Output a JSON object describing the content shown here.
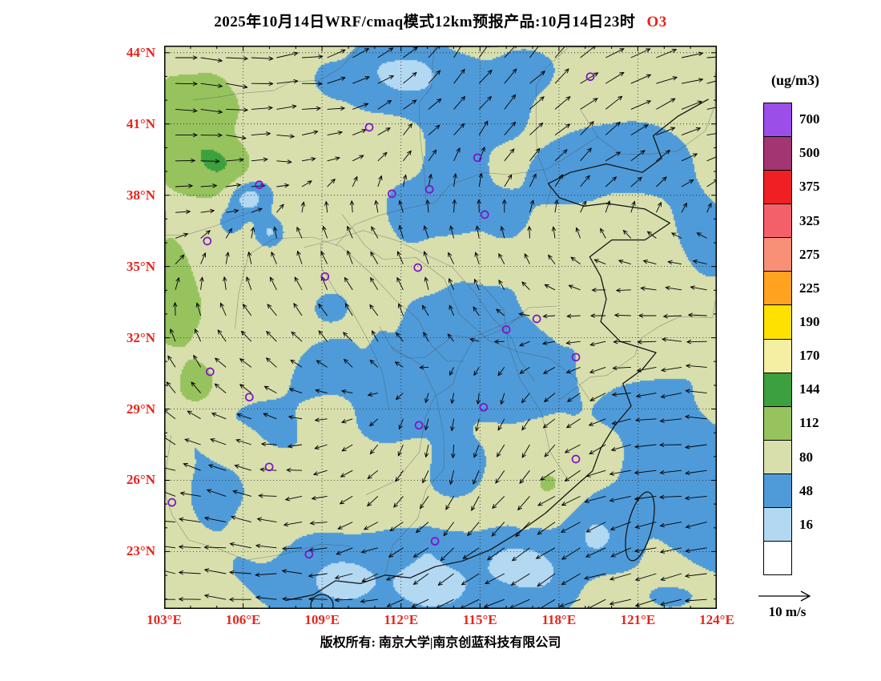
{
  "colors": {
    "accent_red": "#e8241c",
    "marker_purple": "#7c12c8"
  },
  "title": {
    "main": "2025年10月14日WRF/cmaq模式12km预报产品:10月14日23时",
    "species": "O3"
  },
  "colorbar": {
    "unit_label": "(ug/m3)",
    "levels": [
      700,
      500,
      375,
      325,
      275,
      225,
      190,
      170,
      144,
      112,
      80,
      48,
      16
    ],
    "colors_top_to_bottom": [
      "#9b4fe8",
      "#a23572",
      "#ee2024",
      "#f4606a",
      "#f89078",
      "#ffa21f",
      "#ffe100",
      "#f4efa2",
      "#3da03e",
      "#96c35e",
      "#d8dfad",
      "#4f9bd9",
      "#b3d8f2",
      "#ffffff"
    ]
  },
  "axes": {
    "x_ticks": [
      "103°E",
      "106°E",
      "109°E",
      "112°E",
      "115°E",
      "118°E",
      "121°E",
      "124°E"
    ],
    "y_ticks": [
      "44°N",
      "41°N",
      "38°N",
      "35°N",
      "32°N",
      "29°N",
      "26°N",
      "23°N"
    ]
  },
  "wind_legend": {
    "label": "10 m/s"
  },
  "footer": {
    "copyright": "版权所有: 南京大学|南京创蓝科技有限公司"
  },
  "stations": [
    [
      0.771,
      0.055
    ],
    [
      0.371,
      0.145
    ],
    [
      0.567,
      0.199
    ],
    [
      0.172,
      0.247
    ],
    [
      0.48,
      0.255
    ],
    [
      0.412,
      0.263
    ],
    [
      0.58,
      0.3
    ],
    [
      0.078,
      0.347
    ],
    [
      0.291,
      0.41
    ],
    [
      0.459,
      0.394
    ],
    [
      0.674,
      0.485
    ],
    [
      0.619,
      0.504
    ],
    [
      0.745,
      0.553
    ],
    [
      0.083,
      0.579
    ],
    [
      0.154,
      0.624
    ],
    [
      0.578,
      0.642
    ],
    [
      0.461,
      0.674
    ],
    [
      0.745,
      0.734
    ],
    [
      0.19,
      0.748
    ],
    [
      0.014,
      0.811
    ],
    [
      0.49,
      0.88
    ],
    [
      0.262,
      0.903
    ]
  ],
  "chart_data": {
    "type": "heatmap",
    "title": "2025年10月14日WRF/cmaq模式12km预报产品:10月14日23时 O3",
    "variable": "O3",
    "unit": "ug/m3",
    "lon_range": [
      103,
      124
    ],
    "lat_range": [
      23,
      44
    ],
    "contour_levels": [
      16,
      48,
      80,
      112,
      144,
      170,
      190,
      225,
      275,
      325,
      375,
      500,
      700
    ],
    "legend_position": "right",
    "wind_reference_ms": 10
  }
}
